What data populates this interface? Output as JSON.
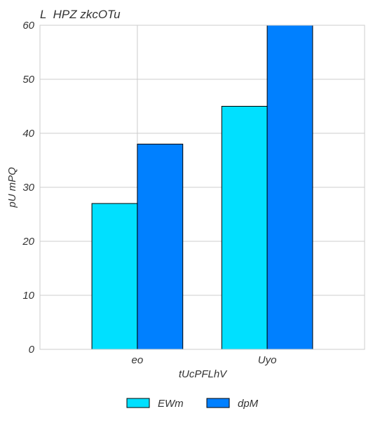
{
  "chart_data": {
    "type": "bar",
    "title": "L  HPZ zkcOTu",
    "xlabel": "tUcPFLhV",
    "ylabel": "pU mPQ",
    "categories": [
      "eo",
      "Uyo"
    ],
    "series": [
      {
        "name": "EWm",
        "values": [
          27,
          45
        ],
        "color": "#00e0ff"
      },
      {
        "name": "dpM",
        "values": [
          38,
          60
        ],
        "color": "#0080ff"
      }
    ],
    "ylim": [
      0,
      60
    ],
    "yticks": [
      0,
      10,
      20,
      30,
      40,
      50,
      60
    ],
    "grid": true,
    "legend_position": "bottom-center"
  }
}
